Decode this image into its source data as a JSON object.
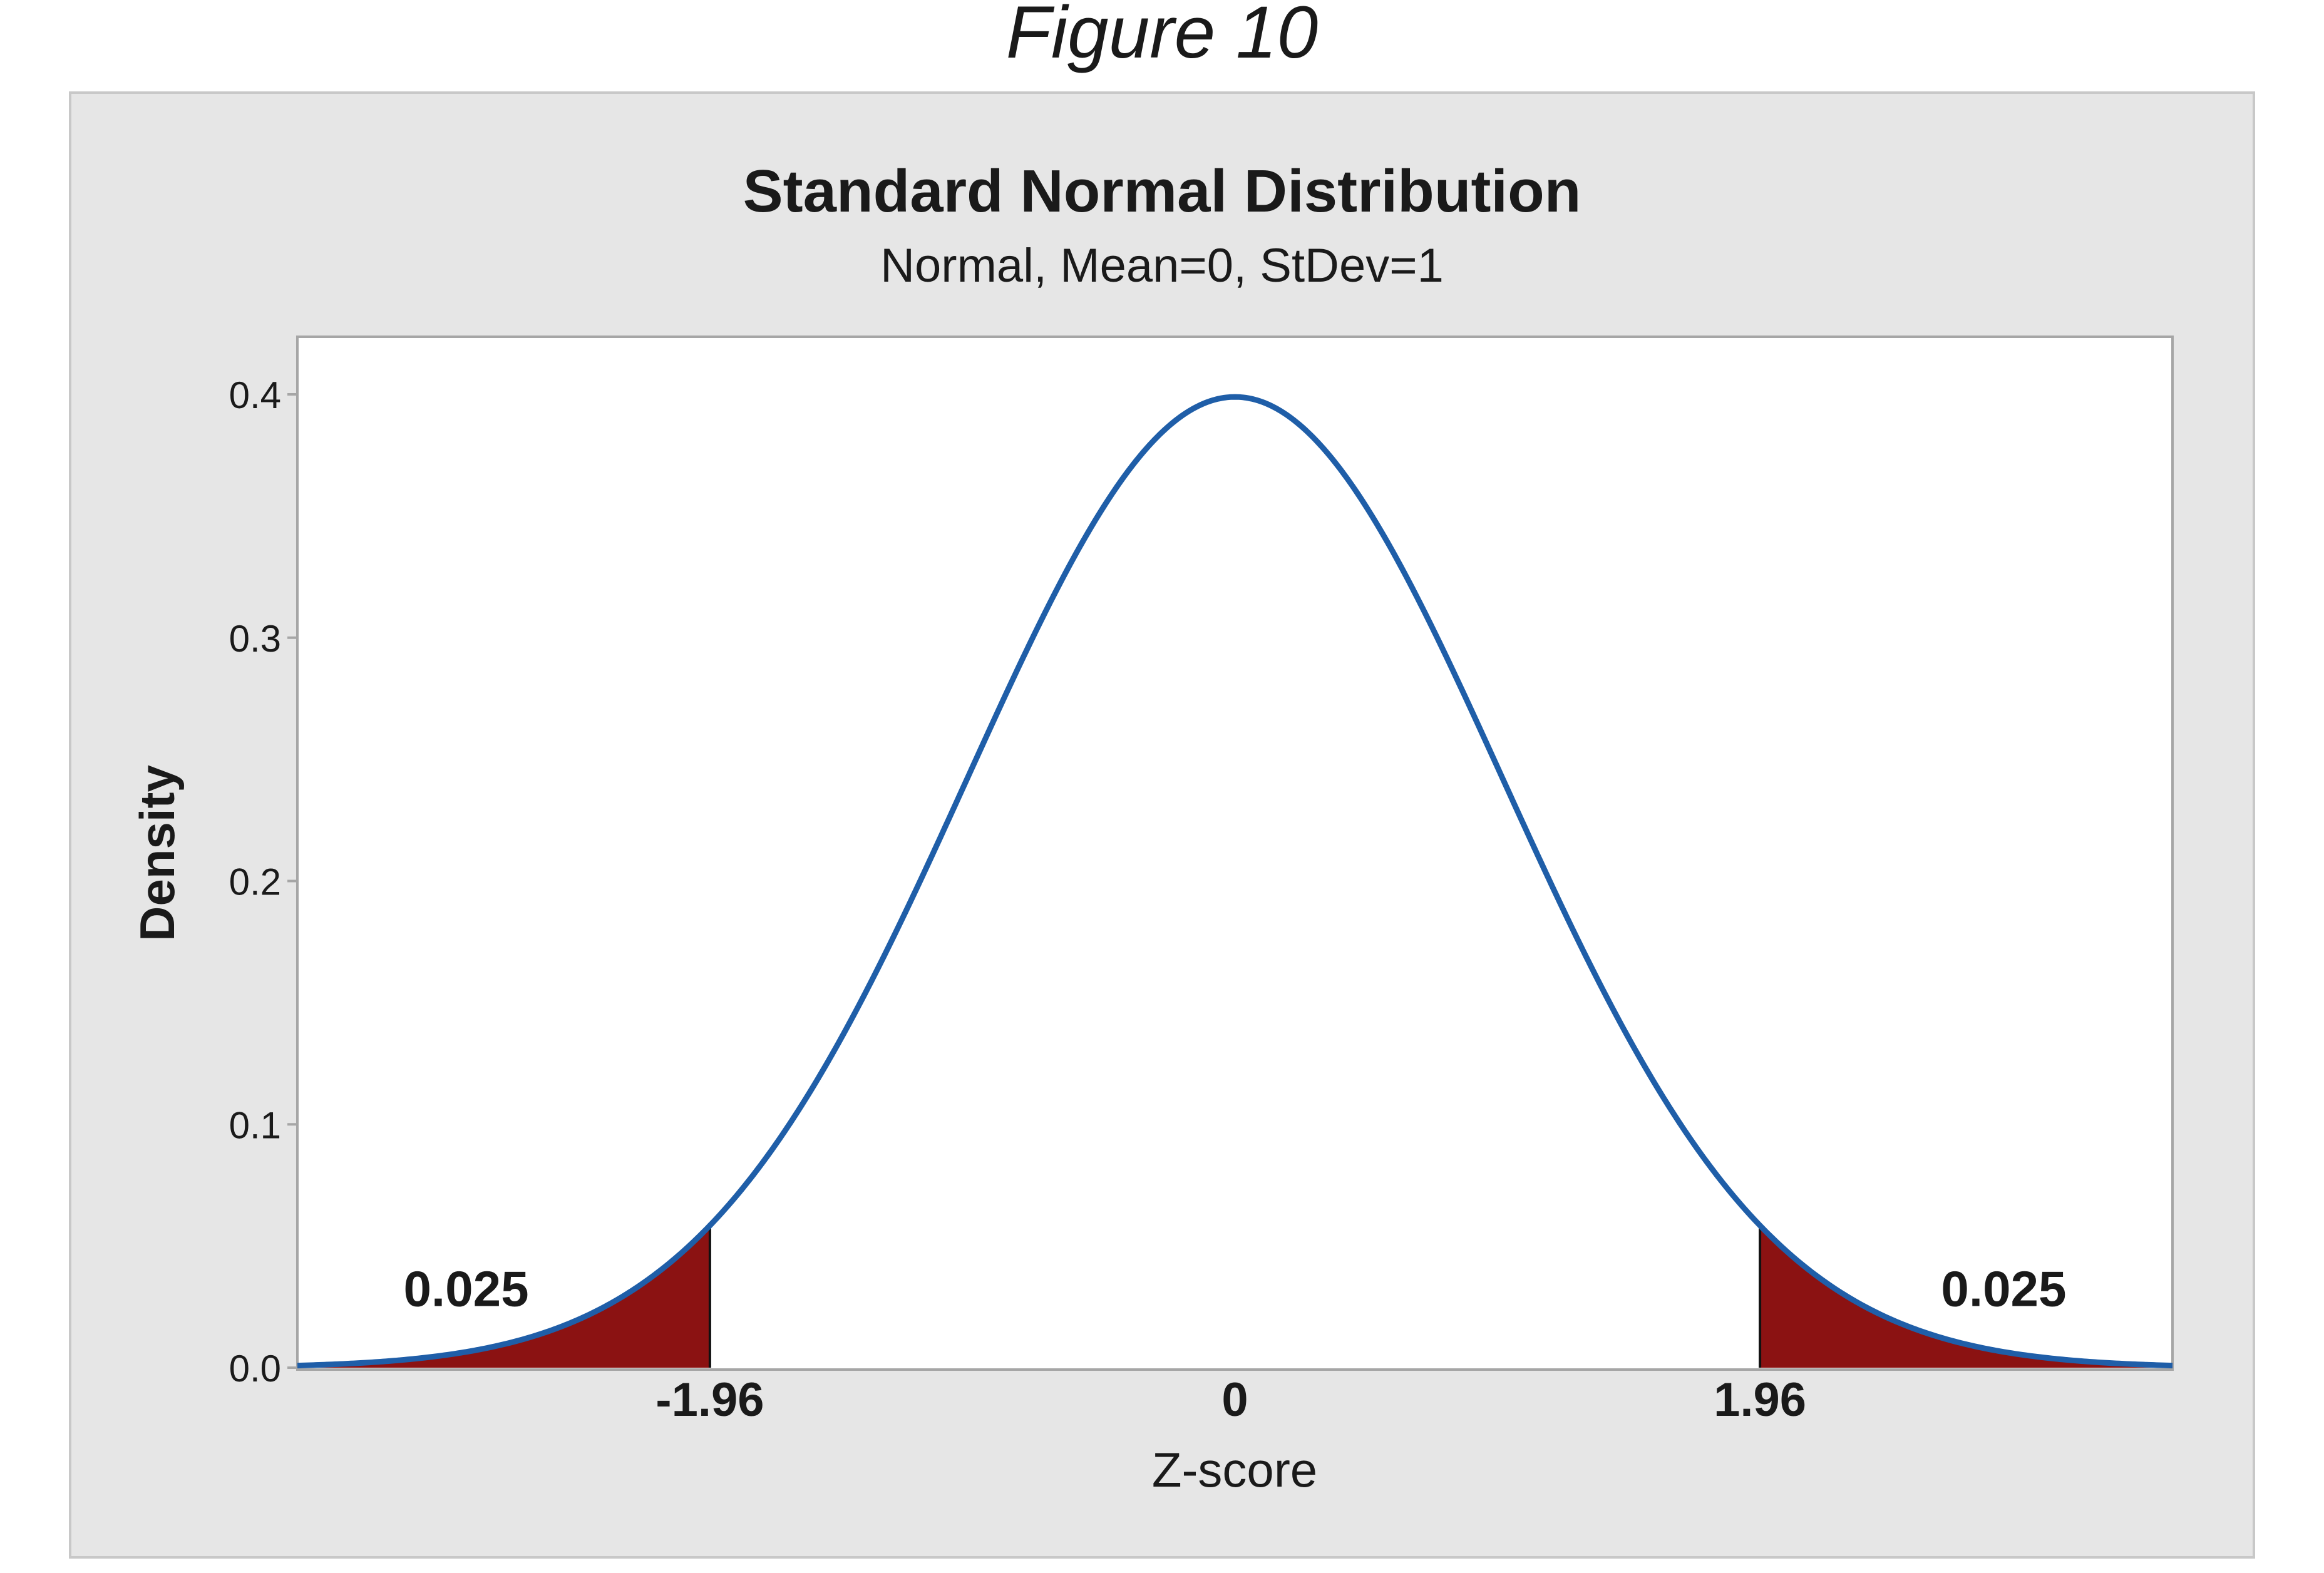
{
  "figure_label": "Figure 10",
  "colors": {
    "panel_bg": "#e6e6e6",
    "panel_border": "#c8c8c8",
    "plot_bg": "#ffffff",
    "plot_border": "#a6a6a6",
    "curve": "#1f5ea8",
    "tail_fill": "#8b1212",
    "text": "#1a1a1a"
  },
  "chart_data": {
    "type": "area",
    "title": "Standard Normal Distribution",
    "subtitle": "Normal, Mean=0, StDev=1",
    "xlabel": "Z-score",
    "ylabel": "Density",
    "distribution": "normal",
    "mean": 0,
    "stdev": 1,
    "xlim": [
      -3.5,
      3.5
    ],
    "ylim": [
      0,
      0.42
    ],
    "yticks": [
      0.0,
      0.1,
      0.2,
      0.3,
      0.4
    ],
    "ytick_labels": [
      "0.0",
      "0.1",
      "0.2",
      "0.3",
      "0.4"
    ],
    "xticks": [
      -1.96,
      0,
      1.96
    ],
    "xtick_labels": [
      "-1.96",
      "0",
      "1.96"
    ],
    "shaded_regions": [
      {
        "name": "left-tail",
        "from": -3.5,
        "to": -1.96,
        "area": 0.025,
        "label": "0.025"
      },
      {
        "name": "right-tail",
        "from": 1.96,
        "to": 3.5,
        "area": 0.025,
        "label": "0.025"
      }
    ],
    "annotations": [
      {
        "text": "0.025",
        "x": -2.87,
        "y": 0.033
      },
      {
        "text": "0.025",
        "x": 2.87,
        "y": 0.033
      }
    ],
    "grid": false,
    "legend": "none"
  }
}
